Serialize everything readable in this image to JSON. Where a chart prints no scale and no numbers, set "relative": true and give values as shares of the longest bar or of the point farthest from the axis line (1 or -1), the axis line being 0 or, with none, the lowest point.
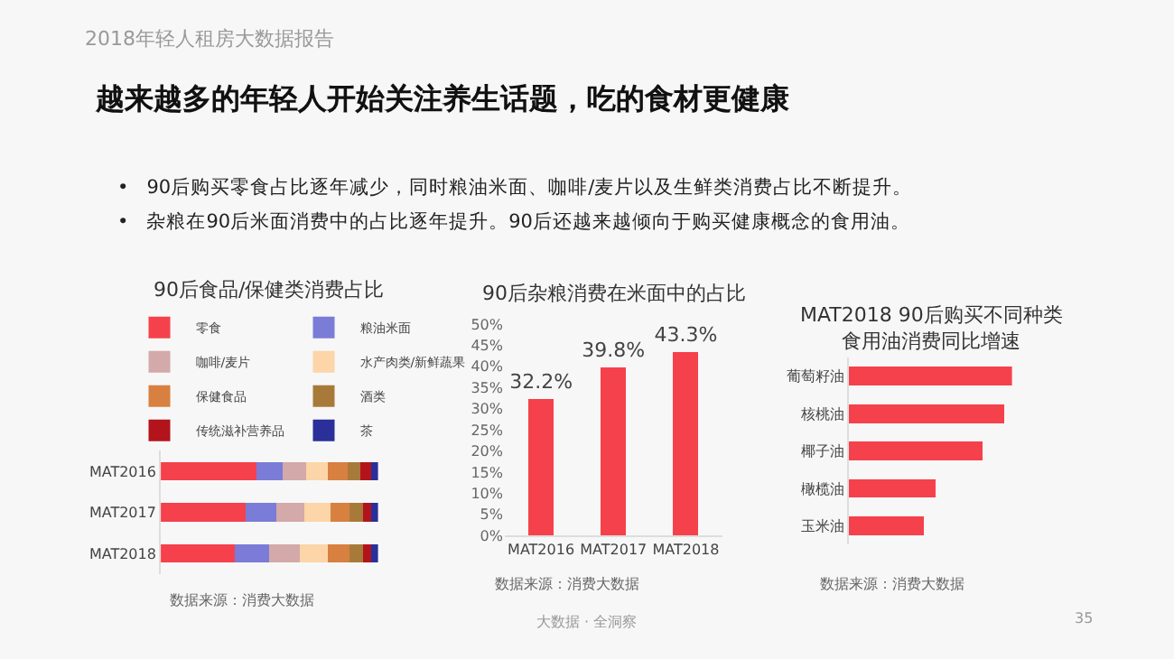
{
  "chart_data": [
    {
      "type": "bar",
      "title": "90后食品/保健类消费占比",
      "orientation": "horizontal",
      "stacked": true,
      "relative": true,
      "legend": "top",
      "categories": [
        "MAT2016",
        "MAT2017",
        "MAT2018"
      ],
      "series": [
        {
          "name": "零食",
          "color": "#f5414b",
          "values": [
            0.44,
            0.39,
            0.34
          ]
        },
        {
          "name": "粮油米面",
          "color": "#7b7bd8",
          "values": [
            0.12,
            0.14,
            0.16
          ]
        },
        {
          "name": "咖啡/麦片",
          "color": "#d4a9a9",
          "values": [
            0.11,
            0.13,
            0.14
          ]
        },
        {
          "name": "水产肉类/新鲜蔬果",
          "color": "#fcd5a8",
          "values": [
            0.1,
            0.12,
            0.13
          ]
        },
        {
          "name": "保健食品",
          "color": "#d8803f",
          "values": [
            0.09,
            0.09,
            0.1
          ]
        },
        {
          "name": "酒类",
          "color": "#a87a3a",
          "values": [
            0.06,
            0.06,
            0.06
          ]
        },
        {
          "name": "传统滋补营养品",
          "color": "#b3141c",
          "values": [
            0.05,
            0.04,
            0.04
          ]
        },
        {
          "name": "茶",
          "color": "#2b2f9a",
          "values": [
            0.03,
            0.03,
            0.03
          ]
        }
      ],
      "annotations": [
        "2018年轻人租房大数据报告",
        "越来越多的年轻人开始关注养生话题，吃的食材更健康",
        "•   90后购买零食占比逐年减少，同时粮油米面、咖啡/麦片以及生鲜类消费占比不断提升。",
        "•   杂粮在90后米面消费中的占比逐年提升。90后还越来越倾向于购买健康概念的食用油。",
        "数据来源：消费大数据",
        "大数据 · 全洞察",
        "35"
      ]
    },
    {
      "type": "bar",
      "title": "90后杂粮消费在米面中的占比",
      "categories": [
        "MAT2016",
        "MAT2017",
        "MAT2018"
      ],
      "values": [
        32.2,
        39.8,
        43.3
      ],
      "color": "#f5414b",
      "value_labels": [
        "32.2%",
        "39.8%",
        "43.3%"
      ],
      "ylim": [
        0,
        50
      ],
      "yticks": [
        {
          "value": 0,
          "label": "0%"
        },
        {
          "value": 5,
          "label": "5%"
        },
        {
          "value": 10,
          "label": "10%"
        },
        {
          "value": 15,
          "label": "15%"
        },
        {
          "value": 20,
          "label": "20%"
        },
        {
          "value": 25,
          "label": "25%"
        },
        {
          "value": 30,
          "label": "30%"
        },
        {
          "value": 35,
          "label": "35%"
        },
        {
          "value": 40,
          "label": "40%"
        },
        {
          "value": 45,
          "label": "45%"
        },
        {
          "value": 50,
          "label": "50%"
        }
      ],
      "annotations": [
        "数据来源：消费大数据"
      ]
    },
    {
      "type": "bar",
      "title": "MAT2018 90后购买不同种类食用油消费同比增速",
      "orientation": "horizontal",
      "relative": true,
      "categories": [
        "葡萄籽油",
        "核桃油",
        "椰子油",
        "橄榄油",
        "玉米油"
      ],
      "values": [
        1,
        0.95,
        0.82,
        0.53,
        0.46
      ],
      "color": "#f5414b",
      "annotations": [
        "数据来源：消费大数据"
      ]
    }
  ]
}
